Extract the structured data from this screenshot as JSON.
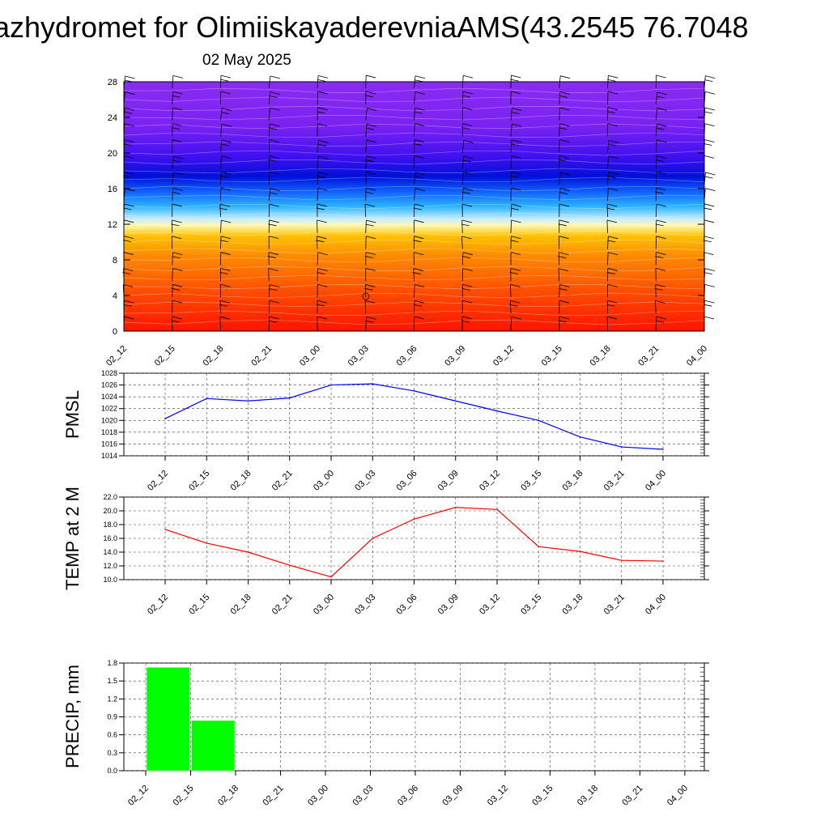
{
  "title": "azhydromet for OlimiiskayaderevniaAMS(43.2545 76.7048",
  "subtitle": "02 May 2025",
  "time_labels": [
    "02_12",
    "02_15",
    "02_18",
    "02_21",
    "03_00",
    "03_03",
    "03_06",
    "03_09",
    "03_12",
    "03_15",
    "03_18",
    "03_21",
    "04_00"
  ],
  "chart_data": [
    {
      "type": "heatmap",
      "description_key": "vertical cross-section with wind barbs",
      "y_ticks": [
        "0",
        "4",
        "8",
        "12",
        "16",
        "20",
        "24",
        "28"
      ],
      "ylim": [
        0,
        28
      ],
      "colors": {
        "low": "#ff1a00",
        "mid_low": "#ffa000",
        "mid": "#fff6a0",
        "mid_high": "#1fb0ff",
        "high": "#0a14e0",
        "top": "#8a2cf0"
      }
    },
    {
      "type": "line",
      "ylabel": "PMSL",
      "y_ticks": [
        "1014",
        "1016",
        "1018",
        "1020",
        "1022",
        "1024",
        "1026",
        "1028"
      ],
      "ylim": [
        1014,
        1028
      ],
      "color": "#0000ff",
      "values": [
        1020.3,
        1023.7,
        1023.3,
        1023.8,
        1026.0,
        1026.2,
        1025.0,
        1023.3,
        1021.6,
        1020.0,
        1017.2,
        1015.5,
        1015.1
      ]
    },
    {
      "type": "line",
      "ylabel": "TEMP at 2 M",
      "y_ticks": [
        "10.0",
        "12.0",
        "14.0",
        "16.0",
        "18.0",
        "20.0",
        "22.0"
      ],
      "ylim": [
        10,
        22
      ],
      "color": "#ff0000",
      "values": [
        17.3,
        15.3,
        14.0,
        12.1,
        10.4,
        16.0,
        18.8,
        20.5,
        20.2,
        14.8,
        14.1,
        12.8,
        12.7
      ]
    },
    {
      "type": "bar",
      "ylabel": "PRECIP, mm",
      "y_ticks": [
        "0.0",
        "0.3",
        "0.6",
        "0.9",
        "1.2",
        "1.5",
        "1.8"
      ],
      "ylim": [
        0,
        1.8
      ],
      "color": "#00ff00",
      "values": [
        0,
        1.73,
        0.84,
        0,
        0,
        0,
        0,
        0,
        0,
        0,
        0,
        0,
        0
      ]
    }
  ]
}
